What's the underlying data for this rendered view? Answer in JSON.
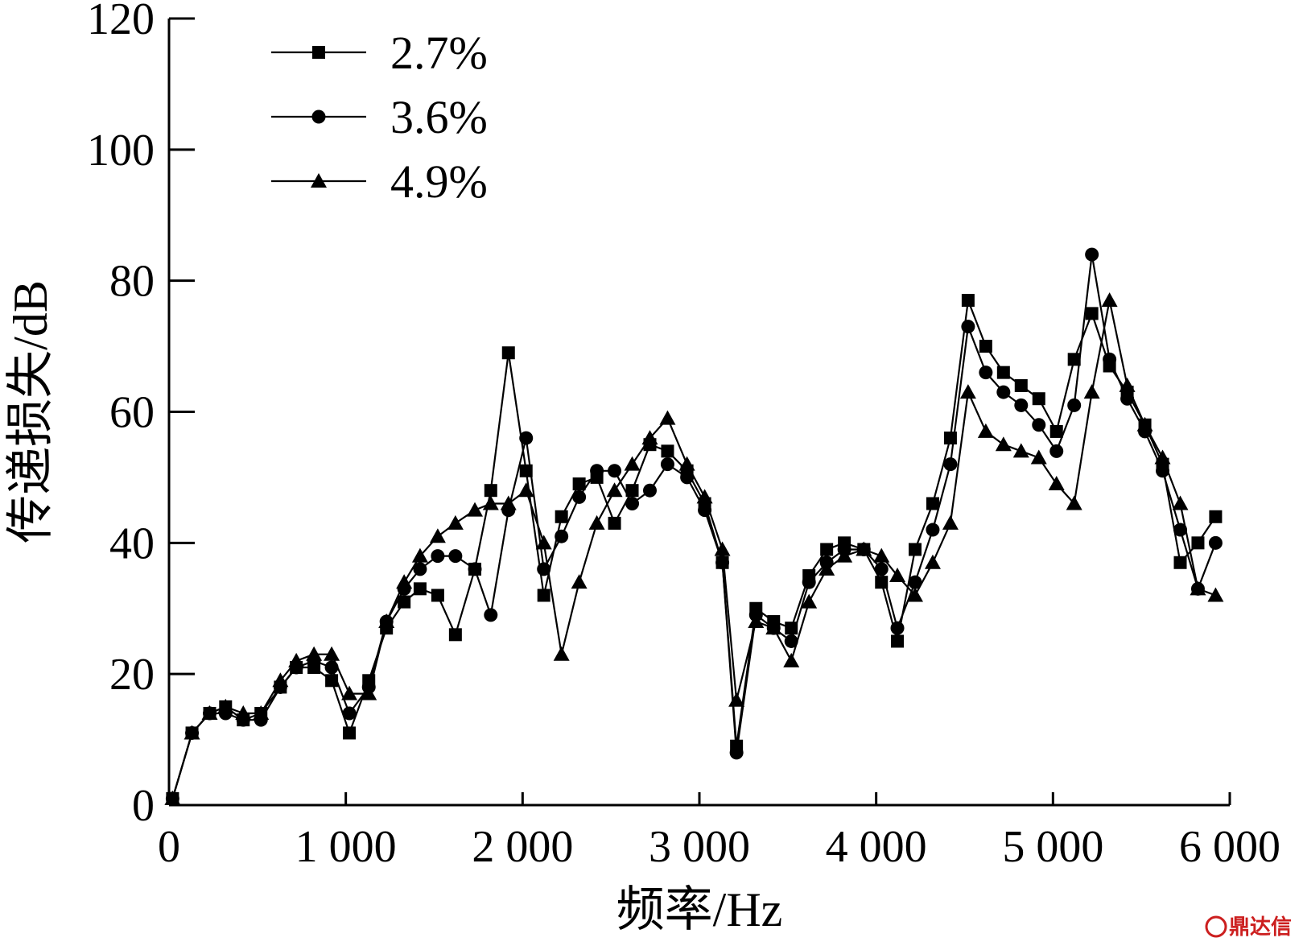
{
  "chart_data": {
    "type": "line",
    "xlabel": "频率/Hz",
    "ylabel": "传递损失/dB",
    "xlim": [
      0,
      6000
    ],
    "ylim": [
      0,
      120
    ],
    "x_ticks": [
      0,
      1000,
      2000,
      3000,
      4000,
      5000,
      6000
    ],
    "x_tick_labels": [
      "0",
      "1 000",
      "2 000",
      "3 000",
      "4 000",
      "5 000",
      "6 000"
    ],
    "y_ticks": [
      0,
      20,
      40,
      60,
      80,
      100,
      120
    ],
    "y_tick_labels": [
      "0",
      "20",
      "40",
      "60",
      "80",
      "100",
      "120"
    ],
    "grid": false,
    "legend_position": "top-left",
    "series": [
      {
        "name": "2.7%",
        "marker": "square",
        "x": [
          20,
          130,
          230,
          320,
          420,
          520,
          630,
          720,
          820,
          920,
          1020,
          1130,
          1230,
          1330,
          1420,
          1520,
          1620,
          1730,
          1820,
          1920,
          2020,
          2120,
          2220,
          2320,
          2420,
          2520,
          2620,
          2720,
          2820,
          2930,
          3030,
          3130,
          3210,
          3320,
          3420,
          3520,
          3620,
          3720,
          3820,
          3930,
          4030,
          4120,
          4220,
          4320,
          4420,
          4520,
          4620,
          4720,
          4820,
          4920,
          5020,
          5120,
          5220,
          5320,
          5420,
          5520,
          5620,
          5720,
          5820,
          5920
        ],
        "y": [
          1,
          11,
          14,
          15,
          13,
          14,
          18,
          21,
          21,
          19,
          11,
          19,
          27,
          31,
          33,
          32,
          26,
          36,
          48,
          69,
          51,
          32,
          44,
          49,
          50,
          43,
          48,
          55,
          54,
          51,
          46,
          37,
          9,
          30,
          28,
          27,
          35,
          39,
          40,
          39,
          34,
          25,
          39,
          46,
          56,
          77,
          70,
          66,
          64,
          62,
          57,
          68,
          75,
          67,
          63,
          58,
          52,
          37,
          40,
          44
        ]
      },
      {
        "name": "3.6%",
        "marker": "circle",
        "x": [
          20,
          130,
          230,
          320,
          420,
          520,
          630,
          720,
          820,
          920,
          1020,
          1130,
          1230,
          1330,
          1420,
          1520,
          1620,
          1730,
          1820,
          1920,
          2020,
          2120,
          2220,
          2320,
          2420,
          2520,
          2620,
          2720,
          2820,
          2930,
          3030,
          3130,
          3210,
          3320,
          3420,
          3520,
          3620,
          3720,
          3820,
          3930,
          4030,
          4120,
          4220,
          4320,
          4420,
          4520,
          4620,
          4720,
          4820,
          4920,
          5020,
          5120,
          5220,
          5320,
          5420,
          5520,
          5620,
          5720,
          5820,
          5920
        ],
        "y": [
          1,
          11,
          14,
          14,
          13,
          13,
          18,
          21,
          22,
          21,
          14,
          18,
          28,
          33,
          36,
          38,
          38,
          36,
          29,
          45,
          56,
          36,
          41,
          47,
          51,
          51,
          46,
          48,
          52,
          50,
          45,
          37,
          8,
          29,
          27,
          25,
          34,
          37,
          39,
          39,
          36,
          27,
          34,
          42,
          52,
          73,
          66,
          63,
          61,
          58,
          54,
          61,
          84,
          68,
          62,
          57,
          51,
          42,
          33,
          40
        ]
      },
      {
        "name": "4.9%",
        "marker": "triangle",
        "x": [
          20,
          130,
          230,
          320,
          420,
          520,
          630,
          720,
          820,
          920,
          1020,
          1130,
          1230,
          1330,
          1420,
          1520,
          1620,
          1730,
          1820,
          1920,
          2020,
          2120,
          2220,
          2320,
          2420,
          2520,
          2620,
          2720,
          2820,
          2930,
          3030,
          3130,
          3210,
          3320,
          3420,
          3520,
          3620,
          3720,
          3820,
          3930,
          4030,
          4120,
          4220,
          4320,
          4420,
          4520,
          4620,
          4720,
          4820,
          4920,
          5020,
          5120,
          5220,
          5320,
          5420,
          5520,
          5620,
          5720,
          5820,
          5920
        ],
        "y": [
          1,
          11,
          14,
          15,
          14,
          14,
          19,
          22,
          23,
          23,
          17,
          17,
          28,
          34,
          38,
          41,
          43,
          45,
          46,
          46,
          48,
          40,
          23,
          34,
          43,
          48,
          52,
          56,
          59,
          52,
          47,
          39,
          16,
          28,
          27,
          22,
          31,
          36,
          38,
          39,
          38,
          35,
          32,
          37,
          43,
          63,
          57,
          55,
          54,
          53,
          49,
          46,
          63,
          77,
          64,
          58,
          53,
          46,
          33,
          32
        ]
      }
    ]
  },
  "watermark": {
    "text": "鼎达信",
    "color": "#cc1f1f"
  }
}
